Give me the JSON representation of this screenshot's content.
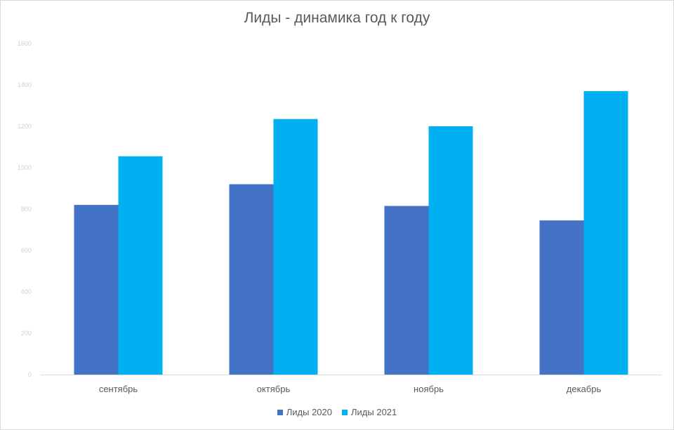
{
  "chart_data": {
    "type": "bar",
    "title": "Лиды - динамика год к году",
    "categories": [
      "сентябрь",
      "октябрь",
      "ноябрь",
      "декабрь"
    ],
    "series": [
      {
        "name": "Лиды 2020",
        "values": [
          820,
          920,
          815,
          745
        ],
        "color": "#4472C4"
      },
      {
        "name": "Лиды 2021",
        "values": [
          1055,
          1235,
          1200,
          1370
        ],
        "color": "#00B0F0"
      }
    ],
    "y_ticks": [
      "0",
      "200",
      "400",
      "600",
      "800",
      "1000",
      "1200",
      "1400",
      "1600"
    ],
    "ylim": [
      0,
      1600
    ],
    "grid": false,
    "legend": "bottom"
  }
}
